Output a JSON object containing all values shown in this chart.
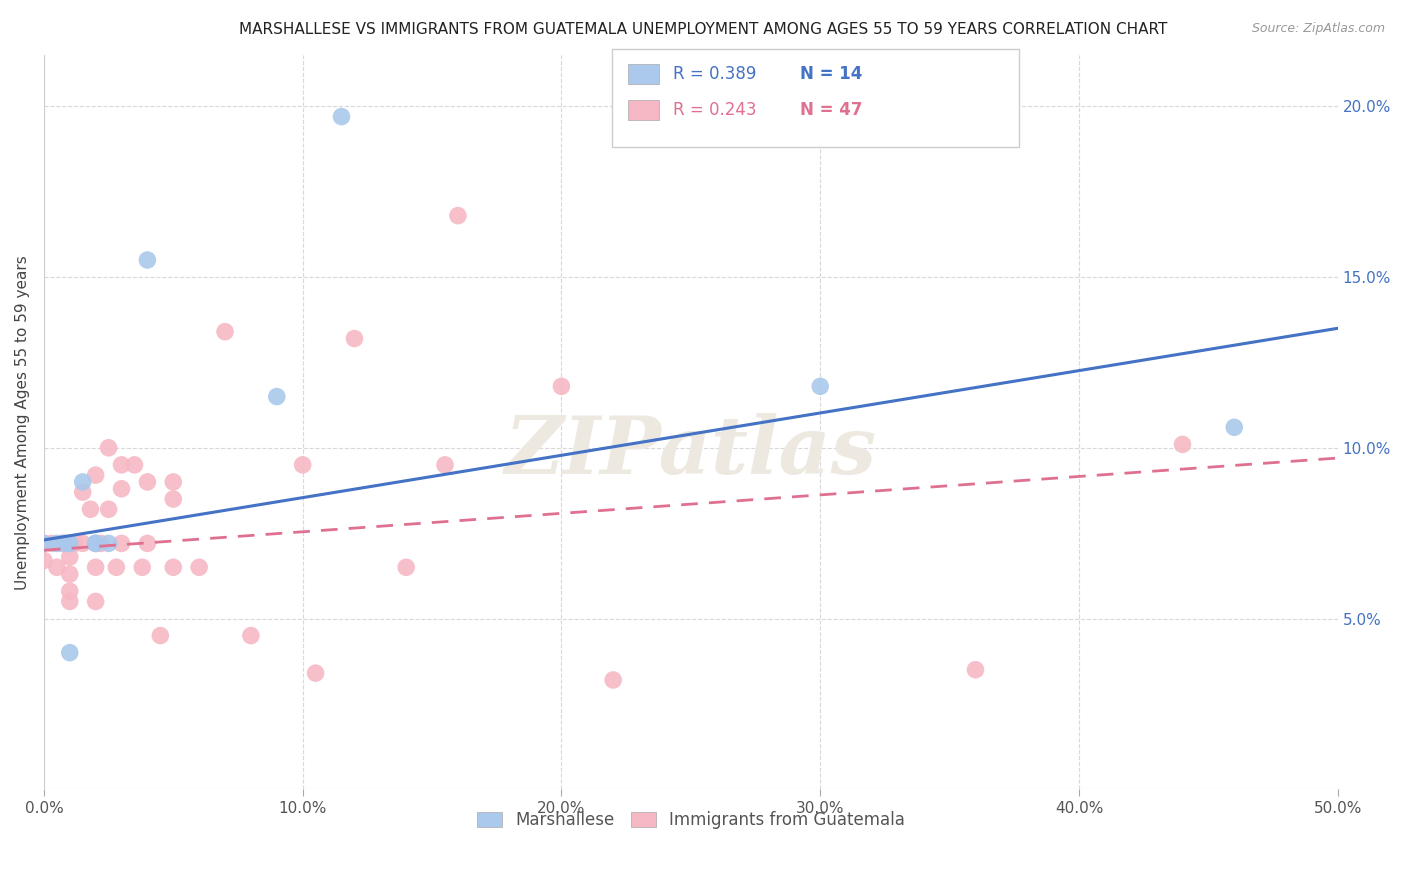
{
  "title": "MARSHALLESE VS IMMIGRANTS FROM GUATEMALA UNEMPLOYMENT AMONG AGES 55 TO 59 YEARS CORRELATION CHART",
  "source": "Source: ZipAtlas.com",
  "ylabel": "Unemployment Among Ages 55 to 59 years",
  "xlim": [
    0,
    0.5
  ],
  "ylim": [
    0,
    0.215
  ],
  "xtick_labels": [
    "0.0%",
    "10.0%",
    "20.0%",
    "30.0%",
    "40.0%",
    "50.0%"
  ],
  "xtick_values": [
    0,
    0.1,
    0.2,
    0.3,
    0.4,
    0.5
  ],
  "ytick_labels": [
    "5.0%",
    "10.0%",
    "15.0%",
    "20.0%"
  ],
  "ytick_values": [
    0.05,
    0.1,
    0.15,
    0.2
  ],
  "legend_label1": "Marshallese",
  "legend_label2": "Immigrants from Guatemala",
  "legend_R1": "R = 0.389",
  "legend_N1": "N = 14",
  "legend_R2": "R = 0.243",
  "legend_N2": "N = 47",
  "color_blue": "#aac9ec",
  "color_pink": "#f5b8c4",
  "color_blue_line": "#4472c4",
  "color_pink_line": "#e07090",
  "watermark": "ZIPatlas",
  "blue_scatter_x": [
    0.0,
    0.005,
    0.008,
    0.01,
    0.01,
    0.015,
    0.02,
    0.02,
    0.025,
    0.04,
    0.09,
    0.115,
    0.3,
    0.46
  ],
  "blue_scatter_y": [
    0.072,
    0.072,
    0.072,
    0.072,
    0.04,
    0.09,
    0.072,
    0.072,
    0.072,
    0.155,
    0.115,
    0.197,
    0.118,
    0.106
  ],
  "pink_scatter_x": [
    0.0,
    0.0,
    0.003,
    0.005,
    0.007,
    0.008,
    0.01,
    0.01,
    0.01,
    0.01,
    0.01,
    0.012,
    0.015,
    0.015,
    0.018,
    0.02,
    0.02,
    0.02,
    0.02,
    0.022,
    0.025,
    0.025,
    0.028,
    0.03,
    0.03,
    0.03,
    0.035,
    0.038,
    0.04,
    0.04,
    0.045,
    0.05,
    0.05,
    0.05,
    0.06,
    0.07,
    0.08,
    0.1,
    0.105,
    0.12,
    0.14,
    0.155,
    0.16,
    0.2,
    0.22,
    0.36,
    0.44
  ],
  "pink_scatter_y": [
    0.072,
    0.067,
    0.072,
    0.065,
    0.072,
    0.072,
    0.072,
    0.068,
    0.063,
    0.058,
    0.055,
    0.072,
    0.087,
    0.072,
    0.082,
    0.092,
    0.072,
    0.065,
    0.055,
    0.072,
    0.1,
    0.082,
    0.065,
    0.095,
    0.088,
    0.072,
    0.095,
    0.065,
    0.09,
    0.072,
    0.045,
    0.09,
    0.085,
    0.065,
    0.065,
    0.134,
    0.045,
    0.095,
    0.034,
    0.132,
    0.065,
    0.095,
    0.168,
    0.118,
    0.032,
    0.035,
    0.101
  ],
  "blue_trend_y_start": 0.073,
  "blue_trend_y_end": 0.135,
  "pink_trend_y_start": 0.07,
  "pink_trend_y_end": 0.097,
  "background_color": "#ffffff",
  "grid_color": "#d8d8d8"
}
